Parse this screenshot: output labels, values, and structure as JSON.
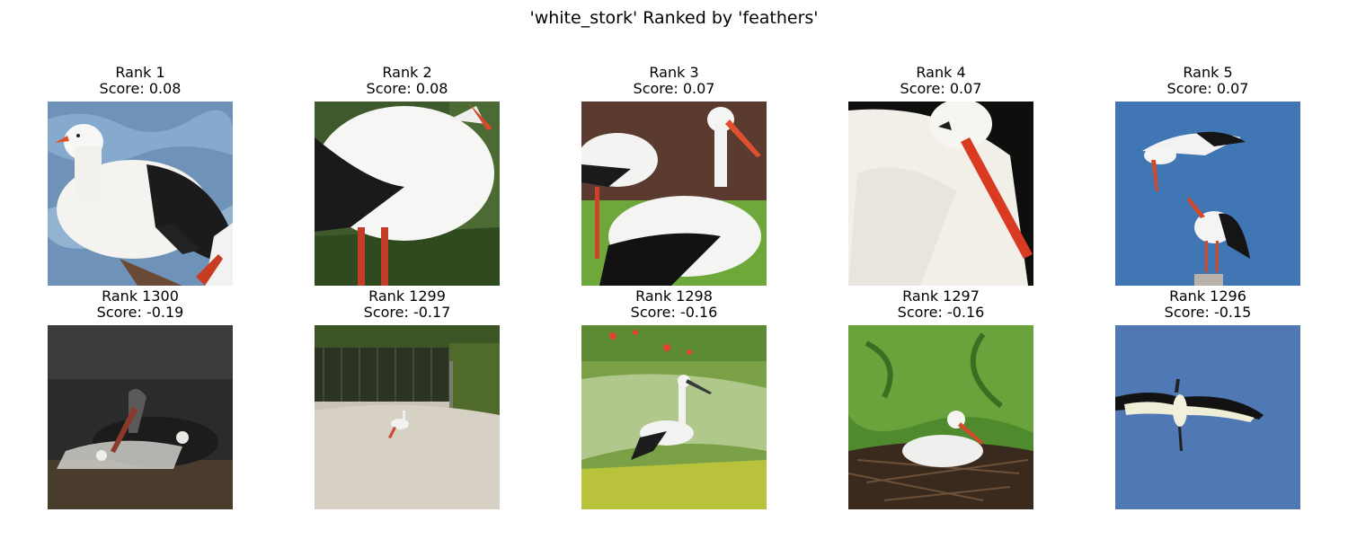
{
  "figure": {
    "title": "'white_stork' Ranked by 'feathers'"
  },
  "rows": [
    {
      "items": [
        {
          "rank": "Rank 1",
          "score": "Score: 0.08",
          "scene": "stork-closeup-water"
        },
        {
          "rank": "Rank 2",
          "score": "Score: 0.08",
          "scene": "stork-body-grass"
        },
        {
          "rank": "Rank 3",
          "score": "Score: 0.07",
          "scene": "storks-standing-lawn"
        },
        {
          "rank": "Rank 4",
          "score": "Score: 0.07",
          "scene": "stork-head-dark-background"
        },
        {
          "rank": "Rank 5",
          "score": "Score: 0.07",
          "scene": "two-storks-flying-sky"
        }
      ]
    },
    {
      "items": [
        {
          "rank": "Rank 1300",
          "score": "Score: -0.19",
          "scene": "dark-bird-water"
        },
        {
          "rank": "Rank 1299",
          "score": "Score: -0.17",
          "scene": "stork-gravel-enclosure"
        },
        {
          "rank": "Rank 1298",
          "score": "Score: -0.16",
          "scene": "stork-flower-meadow"
        },
        {
          "rank": "Rank 1297",
          "score": "Score: -0.16",
          "scene": "stork-nest-foliage"
        },
        {
          "rank": "Rank 1296",
          "score": "Score: -0.15",
          "scene": "stork-soaring-sky"
        }
      ]
    }
  ]
}
